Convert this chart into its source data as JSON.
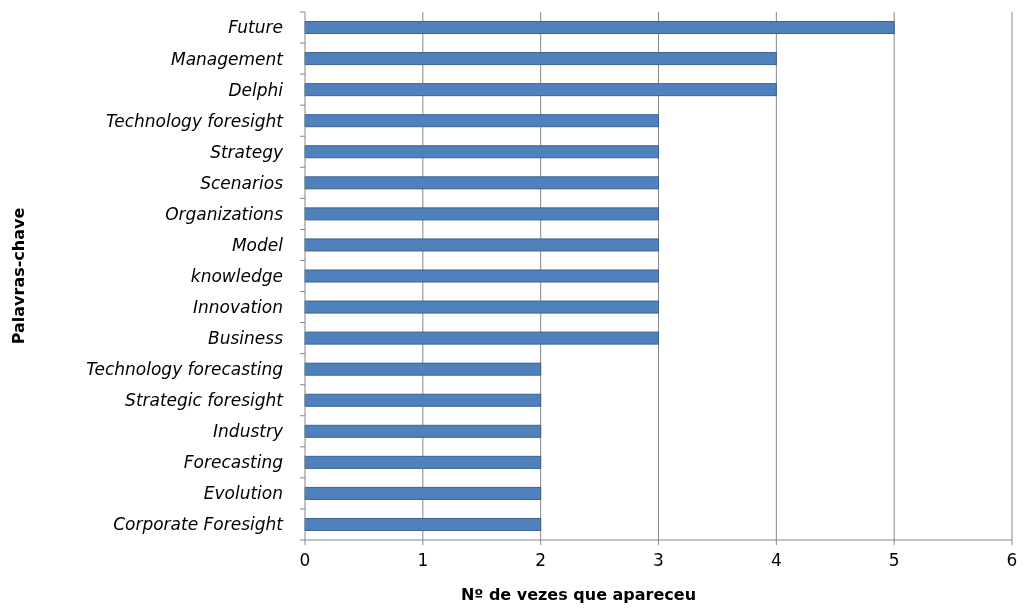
{
  "chart_data": {
    "type": "bar",
    "orientation": "horizontal",
    "xlabel": "Nº de vezes que apareceu",
    "ylabel": "Palavras-chave",
    "categories": [
      "Future",
      "Management",
      "Delphi",
      "Technology foresight",
      "Strategy",
      "Scenarios",
      "Organizations",
      "Model",
      "knowledge",
      "Innovation",
      "Business",
      "Technology forecasting",
      "Strategic foresight",
      "Industry",
      "Forecasting",
      "Evolution",
      "Corporate Foresight"
    ],
    "values": [
      5,
      4,
      4,
      3,
      3,
      3,
      3,
      3,
      3,
      3,
      3,
      2,
      2,
      2,
      2,
      2,
      2
    ],
    "color": "#4f81bd",
    "xlim": [
      0,
      6
    ],
    "xticks": [
      0,
      1,
      2,
      3,
      4,
      5,
      6
    ],
    "grid": "x"
  }
}
